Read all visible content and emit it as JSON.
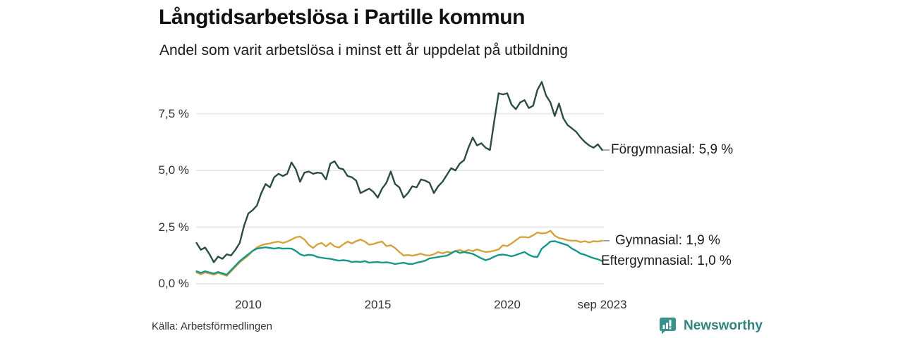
{
  "title": "Långtidsarbetslösa i Partille kommun",
  "subtitle": "Andel som varit arbetslösa i minst ett år uppdelat på utbildning",
  "source": "Källa: Arbetsförmedlingen",
  "branding": {
    "name": "Newsworthy",
    "icon_color": "#38928b",
    "text_color": "#31837d"
  },
  "chart_data": {
    "type": "line",
    "title": "Långtidsarbetslösa i Partille kommun",
    "subtitle": "Andel som varit arbetslösa i minst ett år uppdelat på utbildning",
    "y_unit": "percent",
    "x_unit": "year (monthly series, 2-month sampling)",
    "x_start": 2008.0,
    "x_step_years": 0.1666667,
    "x_end_label": "sep 2023",
    "ylim": [
      0,
      9.3
    ],
    "grid": true,
    "legend_position": "right-end-labels",
    "x_ticks": [
      {
        "t": 2010,
        "label": "2010"
      },
      {
        "t": 2015,
        "label": "2015"
      },
      {
        "t": 2020,
        "label": "2020"
      },
      {
        "t": 2023.6667,
        "label": "sep 2023"
      }
    ],
    "y_ticks": [
      {
        "v": 0,
        "label": "0,0 %"
      },
      {
        "v": 2.5,
        "label": "2,5 %"
      },
      {
        "v": 5,
        "label": "5,0 %"
      },
      {
        "v": 7.5,
        "label": "7,5 %"
      }
    ],
    "series": [
      {
        "name": "Förgymnasial",
        "end_label": "Förgymnasial: 5,9 %",
        "last_value": "5,9 %",
        "color": "#2d4c44",
        "values": [
          1.8,
          1.5,
          1.6,
          1.3,
          0.95,
          1.2,
          1.1,
          1.3,
          1.25,
          1.5,
          1.8,
          2.55,
          3.1,
          3.25,
          3.45,
          4.0,
          4.4,
          4.25,
          4.7,
          4.85,
          4.75,
          4.85,
          5.35,
          5.05,
          4.5,
          4.9,
          4.95,
          4.85,
          4.9,
          4.88,
          4.6,
          5.3,
          5.4,
          5.1,
          5.05,
          4.75,
          4.7,
          4.55,
          4.0,
          4.1,
          4.2,
          4.05,
          3.8,
          4.2,
          4.45,
          4.95,
          4.4,
          4.25,
          3.8,
          4.0,
          4.3,
          4.25,
          4.6,
          4.55,
          4.45,
          4.0,
          4.3,
          4.5,
          4.8,
          5.1,
          5.0,
          5.3,
          5.45,
          6.0,
          6.45,
          6.1,
          6.2,
          6.0,
          5.9,
          7.2,
          8.4,
          8.35,
          8.4,
          7.9,
          7.7,
          8.0,
          8.1,
          7.75,
          7.85,
          8.55,
          8.9,
          8.3,
          8.0,
          7.4,
          7.95,
          7.3,
          7.0,
          6.85,
          6.7,
          6.45,
          6.25,
          6.1,
          6.0,
          6.15,
          5.9
        ]
      },
      {
        "name": "Gymnasial",
        "end_label": "Gymnasial: 1,9 %",
        "last_value": "1,9 %",
        "color": "#d6a23e",
        "values": [
          0.5,
          0.42,
          0.5,
          0.45,
          0.4,
          0.48,
          0.42,
          0.35,
          0.55,
          0.75,
          0.95,
          1.1,
          1.25,
          1.45,
          1.6,
          1.7,
          1.75,
          1.78,
          1.83,
          1.86,
          1.8,
          1.86,
          1.95,
          2.05,
          2.08,
          1.95,
          1.72,
          1.58,
          1.74,
          1.8,
          1.65,
          1.8,
          1.65,
          1.6,
          1.74,
          1.86,
          1.78,
          1.88,
          1.95,
          1.86,
          1.72,
          1.75,
          1.82,
          1.86,
          1.66,
          1.7,
          1.58,
          1.4,
          1.25,
          1.27,
          1.24,
          1.28,
          1.33,
          1.26,
          1.25,
          1.3,
          1.4,
          1.34,
          1.41,
          1.38,
          1.44,
          1.49,
          1.42,
          1.49,
          1.44,
          1.52,
          1.45,
          1.4,
          1.42,
          1.46,
          1.52,
          1.7,
          1.66,
          1.78,
          1.92,
          2.06,
          2.06,
          2.04,
          2.14,
          2.26,
          2.22,
          2.24,
          2.34,
          2.12,
          2.02,
          1.98,
          1.92,
          1.9,
          1.9,
          1.84,
          1.88,
          1.82,
          1.88,
          1.86,
          1.9
        ]
      },
      {
        "name": "Eftergymnasial",
        "end_label": "Eftergymnasial: 1,0 %",
        "last_value": "1,0 %",
        "color": "#15988a",
        "values": [
          0.55,
          0.48,
          0.55,
          0.5,
          0.45,
          0.52,
          0.46,
          0.4,
          0.6,
          0.8,
          1.0,
          1.15,
          1.3,
          1.45,
          1.55,
          1.58,
          1.61,
          1.58,
          1.55,
          1.58,
          1.55,
          1.56,
          1.55,
          1.45,
          1.3,
          1.24,
          1.28,
          1.26,
          1.18,
          1.15,
          1.12,
          1.1,
          1.06,
          1.02,
          1.04,
          1.02,
          0.96,
          0.98,
          0.96,
          1.0,
          0.93,
          0.95,
          0.96,
          0.93,
          0.95,
          0.92,
          0.87,
          0.9,
          0.93,
          0.88,
          0.87,
          0.93,
          0.97,
          1.02,
          1.12,
          1.15,
          1.18,
          1.21,
          1.24,
          1.34,
          1.45,
          1.36,
          1.4,
          1.36,
          1.32,
          1.22,
          1.12,
          1.04,
          1.1,
          1.2,
          1.27,
          1.29,
          1.26,
          1.21,
          1.27,
          1.34,
          1.4,
          1.28,
          1.2,
          1.18,
          1.55,
          1.7,
          1.86,
          1.88,
          1.82,
          1.76,
          1.7,
          1.55,
          1.45,
          1.33,
          1.28,
          1.2,
          1.13,
          1.08,
          1.0
        ]
      }
    ]
  }
}
